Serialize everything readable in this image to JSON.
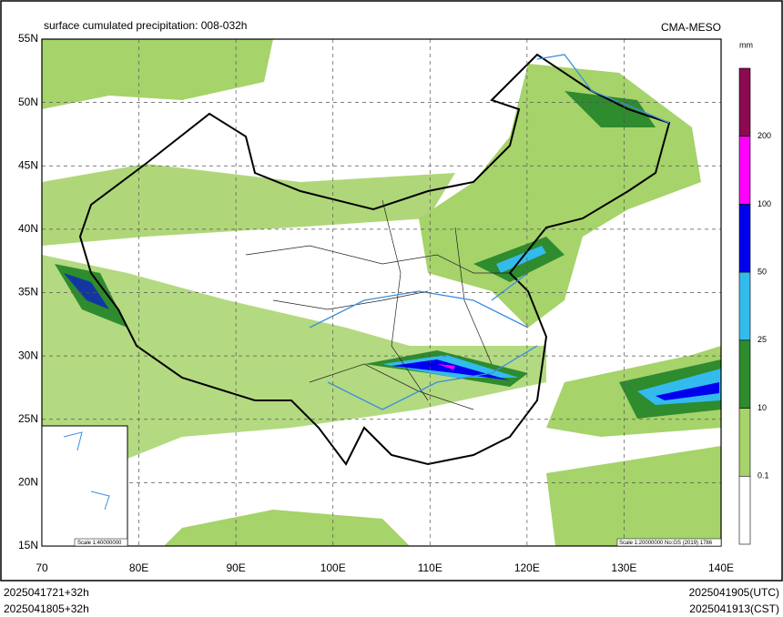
{
  "header": {
    "title": "surface cumulated precipitation: 008-032h",
    "source": "CMA-MESO"
  },
  "map": {
    "lat_labels": [
      "55N",
      "50N",
      "45N",
      "40N",
      "35N",
      "30N",
      "25N",
      "20N",
      "15N"
    ],
    "lon_labels": [
      "70",
      "80E",
      "90E",
      "100E",
      "110E",
      "120E",
      "130E",
      "140E"
    ],
    "scale_note": "Scale 1:20000000 No:GS (2019) 1786",
    "inset_scale": "Scale 1:40000000"
  },
  "legend": {
    "unit": "mm",
    "levels": [
      "200",
      "100",
      "50",
      "25",
      "10",
      "0.1"
    ],
    "colors": [
      "#8b0a50",
      "#ff00ff",
      "#0000ee",
      "#33bbee",
      "#2e8b2e",
      "#a6d36a",
      "#ffffff"
    ]
  },
  "footer": {
    "init_utc": "2025041721+32h",
    "init_cst": "2025041805+32h",
    "valid_utc": "2025041905(UTC)",
    "valid_cst": "2025041913(CST)"
  }
}
